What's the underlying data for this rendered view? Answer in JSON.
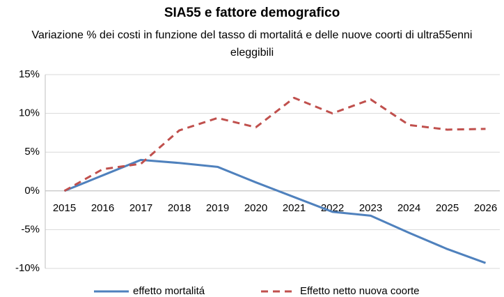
{
  "chart_data": {
    "type": "line",
    "title": "SIA55 e fattore demografico",
    "subtitle": "Variazione % dei costi in funzione del tasso di mortalitá e delle nuove coorti di ultra55enni eleggibili",
    "categories": [
      "2015",
      "2016",
      "2017",
      "2018",
      "2019",
      "2020",
      "2021",
      "2022",
      "2023",
      "2024",
      "2025",
      "2026"
    ],
    "series": [
      {
        "name": "effetto mortalitá",
        "color": "#4f81bd",
        "dashed": false,
        "values": [
          0,
          2.0,
          4.0,
          3.6,
          3.1,
          1.1,
          -0.8,
          -2.7,
          -3.2,
          -5.4,
          -7.5,
          -9.3
        ]
      },
      {
        "name": "Effetto netto nuova coorte",
        "color": "#c0504d",
        "dashed": true,
        "values": [
          0,
          2.8,
          3.5,
          7.8,
          9.4,
          8.2,
          12.0,
          10.0,
          11.8,
          8.5,
          7.9,
          8.0
        ]
      }
    ],
    "ylim": [
      -10,
      15
    ],
    "yticks": [
      {
        "value": -10,
        "label": "-10%"
      },
      {
        "value": -5,
        "label": "-5%"
      },
      {
        "value": 0,
        "label": "0%"
      },
      {
        "value": 5,
        "label": "5%"
      },
      {
        "value": 10,
        "label": "10%"
      },
      {
        "value": 15,
        "label": "15%"
      }
    ],
    "grid": true,
    "legend": "bottom"
  }
}
